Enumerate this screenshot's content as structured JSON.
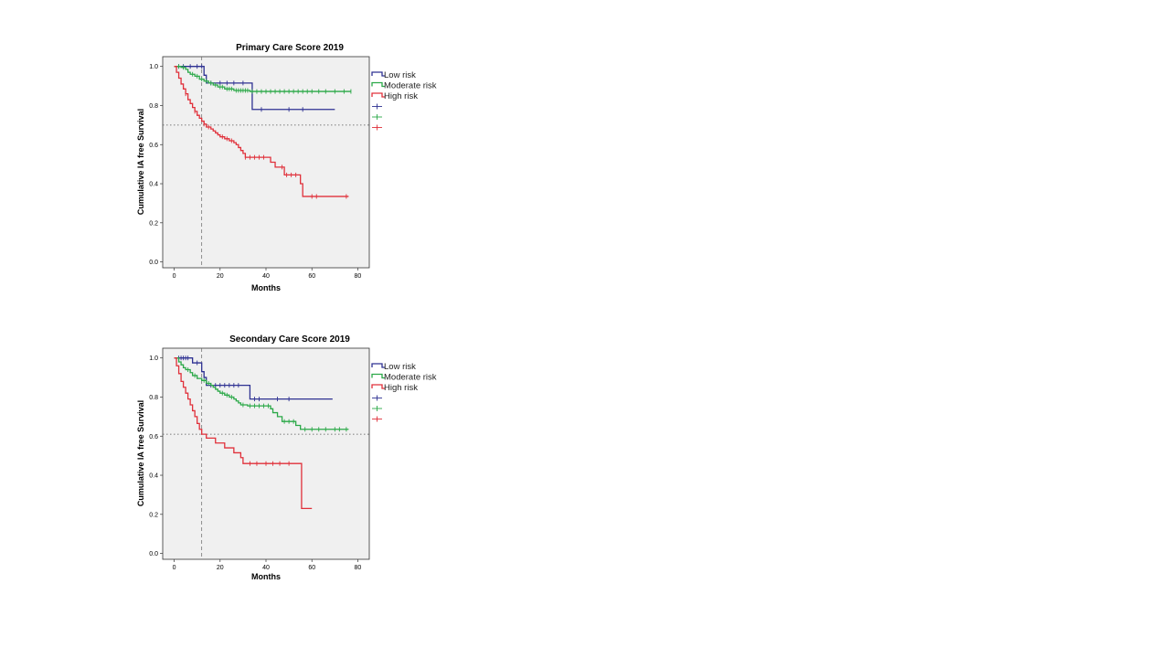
{
  "chart_data": [
    {
      "type": "line",
      "subtype": "kaplan-meier step",
      "title": "Primary Care Score 2019",
      "xlabel": "Months",
      "ylabel": "Cumulative IA free Survival",
      "xlim": [
        -5,
        85
      ],
      "ylim": [
        -0.03,
        1.05
      ],
      "x_ticks": [
        0,
        20,
        40,
        60,
        80
      ],
      "y_ticks": [
        0.0,
        0.2,
        0.4,
        0.6,
        0.8,
        1.0
      ],
      "tick_decimals": 1,
      "reference_lines": {
        "vertical_x": 12,
        "horizontal_y": 0.7
      },
      "grid": false,
      "legend_position": "right",
      "series": [
        {
          "name": "Low risk",
          "color": "#2e3192",
          "steps": [
            [
              0,
              1.0
            ],
            [
              13,
              0.955
            ],
            [
              14,
              0.915
            ],
            [
              34,
              0.78
            ],
            [
              70,
              0.78
            ]
          ],
          "censored": [
            2,
            4,
            7,
            10,
            12,
            16,
            20,
            23,
            26,
            30,
            38,
            50,
            56
          ]
        },
        {
          "name": "Moderate risk",
          "color": "#2aa847",
          "steps": [
            [
              0,
              1.0
            ],
            [
              3,
              0.995
            ],
            [
              5,
              0.985
            ],
            [
              6,
              0.97
            ],
            [
              7,
              0.96
            ],
            [
              9,
              0.95
            ],
            [
              11,
              0.935
            ],
            [
              13,
              0.925
            ],
            [
              15,
              0.915
            ],
            [
              17,
              0.905
            ],
            [
              19,
              0.895
            ],
            [
              22,
              0.885
            ],
            [
              26,
              0.877
            ],
            [
              33,
              0.872
            ],
            [
              77,
              0.872
            ]
          ],
          "censored": [
            2,
            4,
            8,
            10,
            12,
            14,
            16,
            18,
            20,
            21,
            23,
            24,
            25,
            27,
            28,
            29,
            30,
            31,
            32,
            34,
            36,
            38,
            40,
            42,
            44,
            46,
            48,
            50,
            52,
            54,
            56,
            58,
            60,
            63,
            66,
            70,
            74,
            77
          ]
        },
        {
          "name": "High risk",
          "color": "#e0303a",
          "steps": [
            [
              0,
              1.0
            ],
            [
              1,
              0.97
            ],
            [
              2,
              0.94
            ],
            [
              3,
              0.91
            ],
            [
              4,
              0.885
            ],
            [
              5,
              0.86
            ],
            [
              6,
              0.83
            ],
            [
              7,
              0.81
            ],
            [
              8,
              0.79
            ],
            [
              9,
              0.77
            ],
            [
              10,
              0.75
            ],
            [
              11,
              0.735
            ],
            [
              12,
              0.72
            ],
            [
              13,
              0.705
            ],
            [
              14,
              0.69
            ],
            [
              16,
              0.68
            ],
            [
              17,
              0.67
            ],
            [
              18,
              0.66
            ],
            [
              19,
              0.65
            ],
            [
              20,
              0.64
            ],
            [
              22,
              0.63
            ],
            [
              24,
              0.62
            ],
            [
              26,
              0.61
            ],
            [
              27,
              0.6
            ],
            [
              28,
              0.585
            ],
            [
              29,
              0.57
            ],
            [
              30,
              0.555
            ],
            [
              31,
              0.535
            ],
            [
              40,
              0.535
            ],
            [
              42,
              0.51
            ],
            [
              44,
              0.485
            ],
            [
              48,
              0.445
            ],
            [
              55,
              0.4
            ],
            [
              56,
              0.335
            ],
            [
              76,
              0.335
            ]
          ],
          "censored": [
            5,
            9,
            13,
            15,
            21,
            23,
            25,
            31,
            33,
            35,
            37,
            39,
            47,
            49,
            51,
            53,
            60,
            62,
            75
          ]
        }
      ]
    },
    {
      "type": "line",
      "subtype": "kaplan-meier step",
      "title": "Secondary Care Score 2019",
      "xlabel": "Months",
      "ylabel": "Cumulative IA free Survival",
      "xlim": [
        -5,
        85
      ],
      "ylim": [
        -0.03,
        1.05
      ],
      "x_ticks": [
        0,
        20,
        40,
        60,
        80
      ],
      "y_ticks": [
        0.0,
        0.2,
        0.4,
        0.6,
        0.8,
        1.0
      ],
      "tick_decimals": 1,
      "reference_lines": {
        "vertical_x": 12,
        "horizontal_y": 0.61
      },
      "grid": false,
      "legend_position": "right",
      "series": [
        {
          "name": "Low risk",
          "color": "#2e3192",
          "steps": [
            [
              0,
              1.0
            ],
            [
              8,
              0.975
            ],
            [
              12,
              0.93
            ],
            [
              13,
              0.9
            ],
            [
              14,
              0.86
            ],
            [
              33,
              0.79
            ],
            [
              69,
              0.79
            ]
          ],
          "censored": [
            2,
            3,
            4,
            5,
            6,
            10,
            16,
            18,
            20,
            22,
            24,
            26,
            28,
            35,
            37,
            45,
            50
          ]
        },
        {
          "name": "Moderate risk",
          "color": "#2aa847",
          "steps": [
            [
              0,
              1.0
            ],
            [
              2,
              0.98
            ],
            [
              3,
              0.965
            ],
            [
              4,
              0.95
            ],
            [
              5,
              0.94
            ],
            [
              7,
              0.925
            ],
            [
              8,
              0.91
            ],
            [
              10,
              0.895
            ],
            [
              12,
              0.885
            ],
            [
              14,
              0.87
            ],
            [
              16,
              0.86
            ],
            [
              17,
              0.85
            ],
            [
              18,
              0.84
            ],
            [
              19,
              0.83
            ],
            [
              20,
              0.82
            ],
            [
              22,
              0.81
            ],
            [
              24,
              0.8
            ],
            [
              26,
              0.79
            ],
            [
              27,
              0.78
            ],
            [
              28,
              0.77
            ],
            [
              29,
              0.76
            ],
            [
              32,
              0.755
            ],
            [
              42,
              0.74
            ],
            [
              43,
              0.72
            ],
            [
              45,
              0.7
            ],
            [
              47,
              0.675
            ],
            [
              53,
              0.655
            ],
            [
              55,
              0.635
            ],
            [
              76,
              0.635
            ]
          ],
          "censored": [
            6,
            9,
            13,
            15,
            21,
            23,
            25,
            30,
            33,
            35,
            37,
            39,
            41,
            48,
            50,
            52,
            57,
            60,
            63,
            66,
            70,
            72,
            75
          ]
        },
        {
          "name": "High risk",
          "color": "#e0303a",
          "steps": [
            [
              0,
              1.0
            ],
            [
              1,
              0.96
            ],
            [
              2,
              0.92
            ],
            [
              3,
              0.88
            ],
            [
              4,
              0.85
            ],
            [
              5,
              0.82
            ],
            [
              6,
              0.79
            ],
            [
              7,
              0.76
            ],
            [
              8,
              0.73
            ],
            [
              9,
              0.7
            ],
            [
              10,
              0.665
            ],
            [
              11,
              0.635
            ],
            [
              12,
              0.61
            ],
            [
              14,
              0.59
            ],
            [
              18,
              0.565
            ],
            [
              22,
              0.54
            ],
            [
              26,
              0.515
            ],
            [
              29,
              0.49
            ],
            [
              30,
              0.46
            ],
            [
              55,
              0.46
            ],
            [
              55.5,
              0.23
            ],
            [
              60,
              0.23
            ]
          ],
          "censored": [
            33,
            36,
            40,
            43,
            46,
            50
          ]
        }
      ]
    }
  ]
}
